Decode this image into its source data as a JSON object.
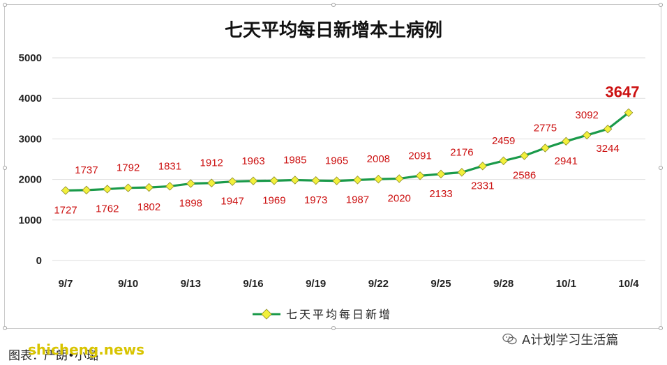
{
  "chart_data": {
    "type": "line",
    "title": "七天平均每日新增本土病例",
    "categories": [
      "9/7",
      "9/8",
      "9/9",
      "9/10",
      "9/11",
      "9/12",
      "9/13",
      "9/14",
      "9/15",
      "9/16",
      "9/17",
      "9/18",
      "9/19",
      "9/20",
      "9/21",
      "9/22",
      "9/23",
      "9/24",
      "9/25",
      "9/26",
      "9/27",
      "9/28",
      "9/29",
      "9/30",
      "10/1",
      "10/2",
      "10/3",
      "10/4"
    ],
    "tick_labels": [
      "9/7",
      "9/10",
      "9/13",
      "9/16",
      "9/19",
      "9/22",
      "9/25",
      "9/28",
      "10/1",
      "10/4"
    ],
    "series": [
      {
        "name": "七天平均每日新增",
        "values": [
          1727,
          1737,
          1762,
          1792,
          1802,
          1831,
          1898,
          1912,
          1947,
          1963,
          1969,
          1985,
          1973,
          1965,
          1987,
          2008,
          2020,
          2091,
          2133,
          2176,
          2331,
          2459,
          2586,
          2775,
          2941,
          3092,
          3244,
          3647
        ]
      }
    ],
    "ylim": [
      0,
      5000
    ],
    "yticks": [
      0,
      1000,
      2000,
      3000,
      4000,
      5000
    ],
    "grid": true,
    "legend": "bottom",
    "line_color": "#1a9a4a",
    "marker_color": "#f2f03c",
    "label_color": "#cc1111"
  },
  "footer": {
    "credit": "图表：严朗•小璐",
    "site": "shicheng.news",
    "account": "A计划学习生活篇"
  }
}
